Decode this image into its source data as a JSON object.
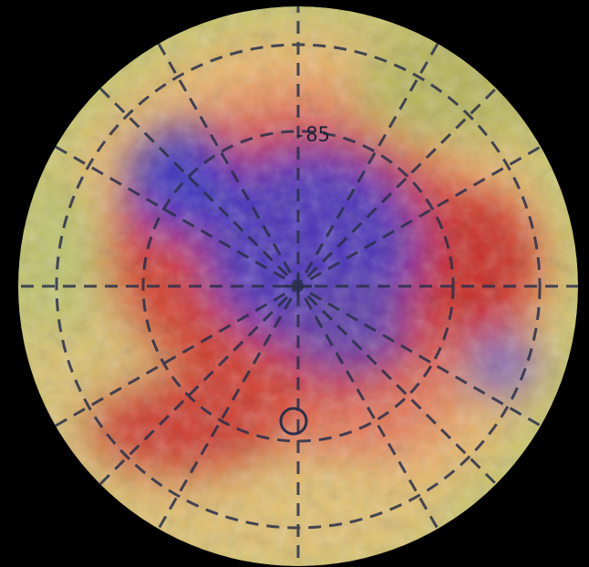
{
  "map": {
    "labels": {
      "latitude": "-85"
    }
  }
}
